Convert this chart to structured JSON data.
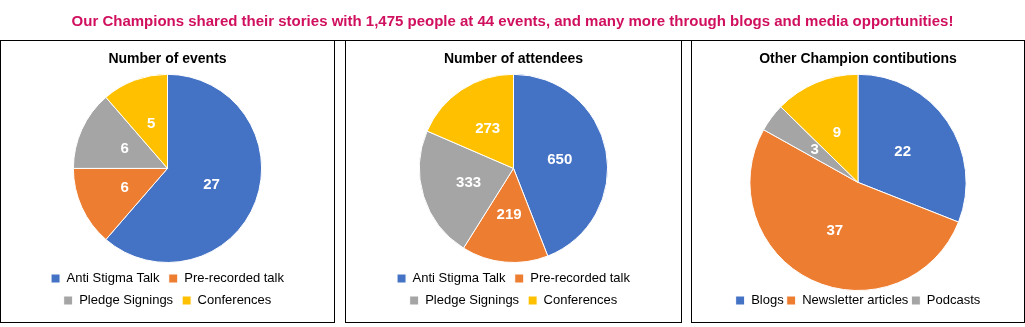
{
  "chart_data": [
    {
      "type": "other",
      "title": "Our Champions shared their stories with 1,475 people at 44 events, and many more through blogs and media opportunities!"
    },
    {
      "type": "pie",
      "title": "Number of events",
      "categories": [
        "Anti Stigma Talk",
        "Pre-recorded talk",
        "Pledge Signings",
        "Conferences"
      ],
      "values": [
        27,
        6,
        6,
        5
      ],
      "colors": [
        "#4472c4",
        "#ed7d31",
        "#a5a5a5",
        "#ffc000"
      ],
      "data_labels": true,
      "legend": "bottom"
    },
    {
      "type": "pie",
      "title": "Number of attendees",
      "categories": [
        "Anti Stigma Talk",
        "Pre-recorded talk",
        "Pledge Signings",
        "Conferences"
      ],
      "values": [
        650,
        219,
        333,
        273
      ],
      "colors": [
        "#4472c4",
        "#ed7d31",
        "#a5a5a5",
        "#ffc000"
      ],
      "data_labels": true,
      "legend": "bottom"
    },
    {
      "type": "pie",
      "title": "Other Champion contibutions",
      "categories": [
        "Blogs",
        "Newsletter articles",
        "Podcasts",
        null
      ],
      "values": [
        22,
        37,
        3,
        9
      ],
      "colors": [
        "#4472c4",
        "#ed7d31",
        "#a5a5a5",
        "#ffc000"
      ],
      "data_labels": true,
      "legend": "bottom"
    }
  ]
}
